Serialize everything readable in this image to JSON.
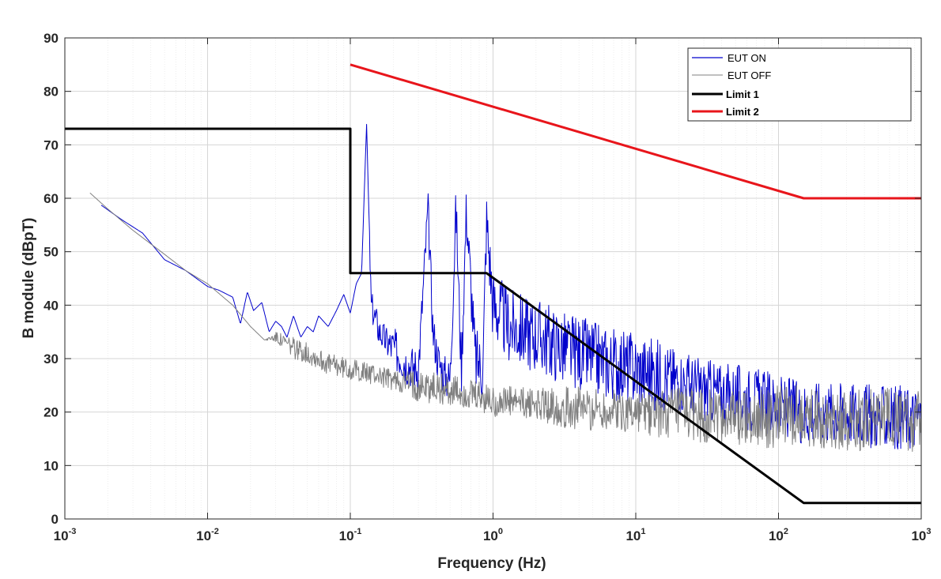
{
  "chart_data": {
    "type": "line",
    "xscale": "log",
    "xlabel": "Frequency (Hz)",
    "ylabel": "B module (dBpT)",
    "xlim": [
      0.001,
      1000
    ],
    "ylim": [
      0,
      90
    ],
    "grid": true,
    "legend_position": "top-right",
    "yticks": [
      0,
      10,
      20,
      30,
      40,
      50,
      60,
      70,
      80,
      90
    ],
    "xticks": [
      {
        "value": 0.001,
        "base": "10",
        "exp": "-3"
      },
      {
        "value": 0.01,
        "base": "10",
        "exp": "-2"
      },
      {
        "value": 0.1,
        "base": "10",
        "exp": "-1"
      },
      {
        "value": 1,
        "base": "10",
        "exp": "0"
      },
      {
        "value": 10,
        "base": "10",
        "exp": "1"
      },
      {
        "value": 100,
        "base": "10",
        "exp": "2"
      },
      {
        "value": 1000,
        "base": "10",
        "exp": "3"
      }
    ],
    "series": [
      {
        "name": "EUT ON",
        "color": "#0000cc",
        "x": [
          0.0018,
          0.0025,
          0.0035,
          0.005,
          0.007,
          0.01,
          0.012,
          0.015,
          0.017,
          0.019,
          0.021,
          0.024,
          0.027,
          0.03,
          0.033,
          0.036,
          0.04,
          0.045,
          0.05,
          0.055,
          0.06,
          0.07,
          0.08,
          0.09,
          0.1,
          0.11,
          0.12,
          0.13,
          0.14,
          0.16,
          0.18,
          0.2,
          0.25,
          0.3,
          0.35,
          0.38,
          0.41,
          0.45,
          0.5,
          0.55,
          0.6,
          0.65,
          0.75,
          0.85,
          0.9,
          1.0,
          1.3,
          1.7,
          2.2,
          3,
          4,
          5,
          7,
          10,
          14,
          20,
          30,
          50,
          80,
          100,
          150,
          200,
          300,
          500,
          700,
          1000
        ],
        "y": [
          58.7,
          56,
          53.5,
          48.5,
          46.5,
          43.5,
          42.8,
          41.5,
          36.5,
          42.5,
          39,
          40.5,
          35,
          37,
          36,
          34,
          38,
          34,
          36,
          35,
          38,
          36,
          39,
          42,
          38.5,
          44,
          46,
          74,
          40,
          35,
          33,
          32,
          29,
          28,
          58,
          35,
          30,
          27,
          26,
          58,
          28,
          58,
          30,
          28,
          56,
          40,
          36,
          35,
          34,
          32,
          31,
          30,
          29,
          28,
          27,
          26,
          24,
          23,
          22,
          21,
          20,
          20,
          20,
          19,
          19,
          19
        ],
        "spread": [
          0,
          0,
          0,
          0,
          0,
          0,
          0,
          0,
          0,
          0,
          0,
          0,
          0,
          0,
          0,
          0,
          0,
          0,
          0,
          0,
          0,
          0,
          0,
          0,
          0,
          0,
          0,
          0,
          3,
          3,
          3,
          4,
          4,
          4,
          4,
          4,
          4,
          4,
          4,
          5,
          5,
          5,
          6,
          6,
          6,
          7,
          7,
          7,
          7,
          7,
          7,
          7,
          7,
          7,
          7,
          6,
          6,
          6,
          6,
          6,
          6,
          6,
          6,
          6,
          6,
          6
        ]
      },
      {
        "name": "EUT OFF",
        "color": "#808080",
        "x": [
          0.0015,
          0.002,
          0.003,
          0.005,
          0.007,
          0.01,
          0.015,
          0.02,
          0.025,
          0.03,
          0.04,
          0.05,
          0.07,
          0.1,
          0.15,
          0.2,
          0.3,
          0.5,
          0.7,
          1,
          2,
          3,
          5,
          10,
          20,
          50,
          100,
          200,
          500,
          1000
        ],
        "y": [
          61,
          58,
          54,
          49.5,
          46.5,
          44,
          40,
          36,
          33.5,
          34,
          32,
          31,
          29,
          28,
          27,
          26,
          25,
          24,
          23,
          22,
          21.5,
          21,
          20.5,
          20,
          19.5,
          19,
          19,
          19,
          18.5,
          18.5
        ],
        "spread": [
          0,
          0,
          0,
          0,
          0,
          0,
          0,
          0,
          0,
          1,
          2,
          2,
          2,
          2,
          2,
          2,
          3,
          3,
          3,
          3,
          3,
          4,
          4,
          4,
          5,
          5,
          6,
          6,
          6,
          6
        ]
      },
      {
        "name": "Limit 1",
        "color": "#000000",
        "x": [
          0.001,
          0.1,
          0.1,
          0.9,
          150,
          1000
        ],
        "y": [
          73,
          73,
          46,
          46,
          3,
          3
        ]
      },
      {
        "name": "Limit 2",
        "color": "#e8151b",
        "x": [
          0.1,
          150,
          1000
        ],
        "y": [
          85,
          60,
          60
        ]
      }
    ]
  }
}
